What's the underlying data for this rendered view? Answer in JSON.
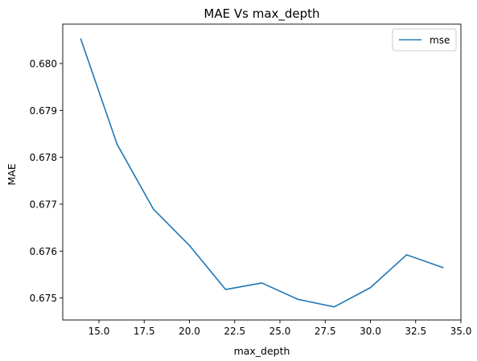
{
  "chart_data": {
    "type": "line",
    "title": "MAE Vs max_depth",
    "xlabel": "max_depth",
    "ylabel": "MAE",
    "xlim": [
      13.0,
      35.0
    ],
    "ylim": [
      0.67453,
      0.68084
    ],
    "x_ticks": [
      15.0,
      17.5,
      20.0,
      22.5,
      25.0,
      27.5,
      30.0,
      32.5,
      35.0
    ],
    "x_tick_labels": [
      "15.0",
      "17.5",
      "20.0",
      "22.5",
      "25.0",
      "27.5",
      "30.0",
      "32.5",
      "35.0"
    ],
    "y_ticks": [
      0.675,
      0.676,
      0.677,
      0.678,
      0.679,
      0.68
    ],
    "y_tick_labels": [
      "0.675",
      "0.676",
      "0.677",
      "0.678",
      "0.679",
      "0.680"
    ],
    "grid": false,
    "legend_position": "top-right",
    "series": [
      {
        "name": "mse",
        "color": "#1f77b4",
        "x": [
          14,
          16,
          18,
          20,
          22,
          24,
          26,
          28,
          30,
          32,
          34
        ],
        "y": [
          0.68052,
          0.67828,
          0.6769,
          0.67612,
          0.67518,
          0.67532,
          0.67497,
          0.67481,
          0.67522,
          0.67592,
          0.67565
        ]
      }
    ]
  }
}
